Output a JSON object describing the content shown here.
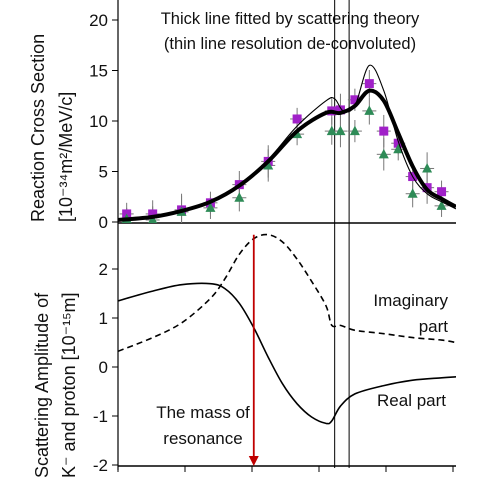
{
  "chart_data": [
    {
      "type": "scatter",
      "title_lines": [
        "Thick line fitted by scattering theory",
        "(thin line resolution de-convoluted)"
      ],
      "ylabel_line1": "Reaction Cross Section",
      "ylabel_line2": "[10⁻³⁴m²/MeV/c]",
      "ylim": [
        0,
        20
      ],
      "yticks": [
        "0",
        "5",
        "10",
        "15",
        "20"
      ],
      "x": [
        1361,
        1370,
        1380,
        1390,
        1400,
        1410,
        1420,
        1432,
        1435,
        1440,
        1445,
        1450,
        1455,
        1460,
        1465,
        1470
      ],
      "series": [
        {
          "marker": "square",
          "color": "#a020c8",
          "values": [
            0.8,
            0.8,
            1.2,
            1.9,
            3.7,
            6.0,
            10.2,
            11.0,
            11.1,
            12.1,
            13.7,
            9.0,
            7.8,
            4.5,
            3.4,
            3.0
          ]
        },
        {
          "marker": "triangle",
          "color": "#2e8b57",
          "values": [
            0.3,
            0.2,
            1.0,
            1.4,
            2.4,
            5.6,
            8.7,
            9.0,
            9.0,
            9.0,
            11.0,
            6.7,
            7.2,
            2.8,
            5.3,
            1.6
          ]
        }
      ],
      "fit_thick_x": [
        1358,
        1370,
        1380,
        1390,
        1400,
        1410,
        1420,
        1430,
        1435,
        1440,
        1445,
        1450,
        1455,
        1460,
        1465,
        1470,
        1475
      ],
      "fit_thick_y": [
        0.2,
        0.5,
        1.1,
        2.0,
        3.6,
        6.0,
        9.0,
        10.8,
        10.8,
        11.5,
        13.0,
        12.0,
        8.8,
        5.5,
        3.2,
        2.3,
        1.5
      ],
      "fit_thin_x": [
        1358,
        1370,
        1380,
        1390,
        1400,
        1410,
        1420,
        1430,
        1433,
        1436,
        1440,
        1445,
        1450,
        1455,
        1460,
        1465,
        1470,
        1475
      ],
      "fit_thin_y": [
        0.2,
        0.5,
        1.1,
        2.0,
        3.7,
        6.2,
        9.5,
        12.0,
        12.2,
        11.0,
        11.5,
        15.5,
        13.0,
        8.0,
        4.5,
        2.8,
        2.0,
        1.3
      ]
    },
    {
      "type": "line",
      "ylabel_line1": "Scattering Amplitude of",
      "ylabel_line2": "K⁻ and proton [10⁻¹⁵m]",
      "ylim": [
        -2,
        3
      ],
      "yticks": [
        "-2",
        "-1",
        "0",
        "1",
        "2"
      ],
      "annotations": {
        "imaginary_line1": "Imaginary",
        "imaginary_line2": "part",
        "real": "Real part",
        "mass_line1": "The mass of",
        "mass_line2": "resonance"
      },
      "resonance_x": 1405,
      "series": [
        {
          "name": "Real part",
          "style": "solid",
          "x": [
            1358,
            1370,
            1380,
            1390,
            1395,
            1400,
            1405,
            1410,
            1415,
            1420,
            1425,
            1430,
            1432,
            1435,
            1440,
            1450,
            1460,
            1470,
            1475
          ],
          "y": [
            1.35,
            1.55,
            1.68,
            1.7,
            1.6,
            1.3,
            0.8,
            0.2,
            -0.35,
            -0.75,
            -1.02,
            -1.15,
            -1.1,
            -0.8,
            -0.55,
            -0.38,
            -0.27,
            -0.22,
            -0.2
          ]
        },
        {
          "name": "Imaginary part",
          "style": "dashed",
          "x": [
            1358,
            1370,
            1380,
            1390,
            1395,
            1400,
            1405,
            1410,
            1415,
            1420,
            1425,
            1430,
            1432,
            1435,
            1440,
            1450,
            1460,
            1470,
            1475
          ],
          "y": [
            0.32,
            0.6,
            0.9,
            1.4,
            1.8,
            2.3,
            2.62,
            2.7,
            2.55,
            2.2,
            1.75,
            1.25,
            0.85,
            0.85,
            0.75,
            0.68,
            0.6,
            0.55,
            0.5
          ]
        }
      ]
    }
  ]
}
